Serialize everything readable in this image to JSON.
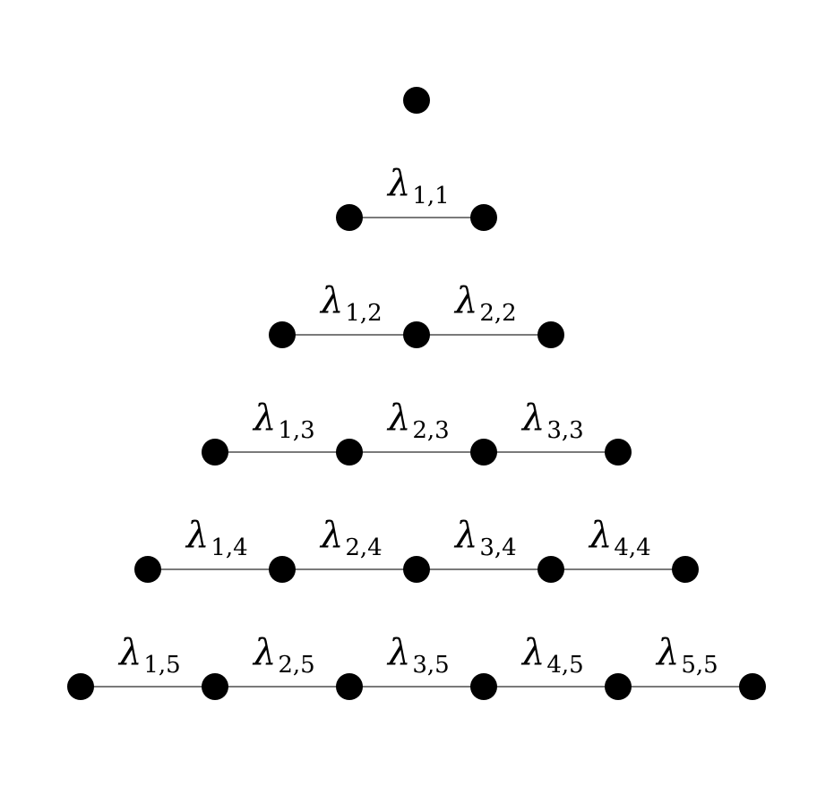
{
  "diagram": {
    "symbol": "λ",
    "rows": [
      {
        "nodes": 1,
        "edge_labels": []
      },
      {
        "nodes": 2,
        "edge_labels": [
          "1,1"
        ]
      },
      {
        "nodes": 3,
        "edge_labels": [
          "1,2",
          "2,2"
        ]
      },
      {
        "nodes": 4,
        "edge_labels": [
          "1,3",
          "2,3",
          "3,3"
        ]
      },
      {
        "nodes": 5,
        "edge_labels": [
          "1,4",
          "2,4",
          "3,4",
          "4,4"
        ]
      },
      {
        "nodes": 6,
        "edge_labels": [
          "1,5",
          "2,5",
          "3,5",
          "4,5",
          "5,5"
        ]
      }
    ]
  }
}
